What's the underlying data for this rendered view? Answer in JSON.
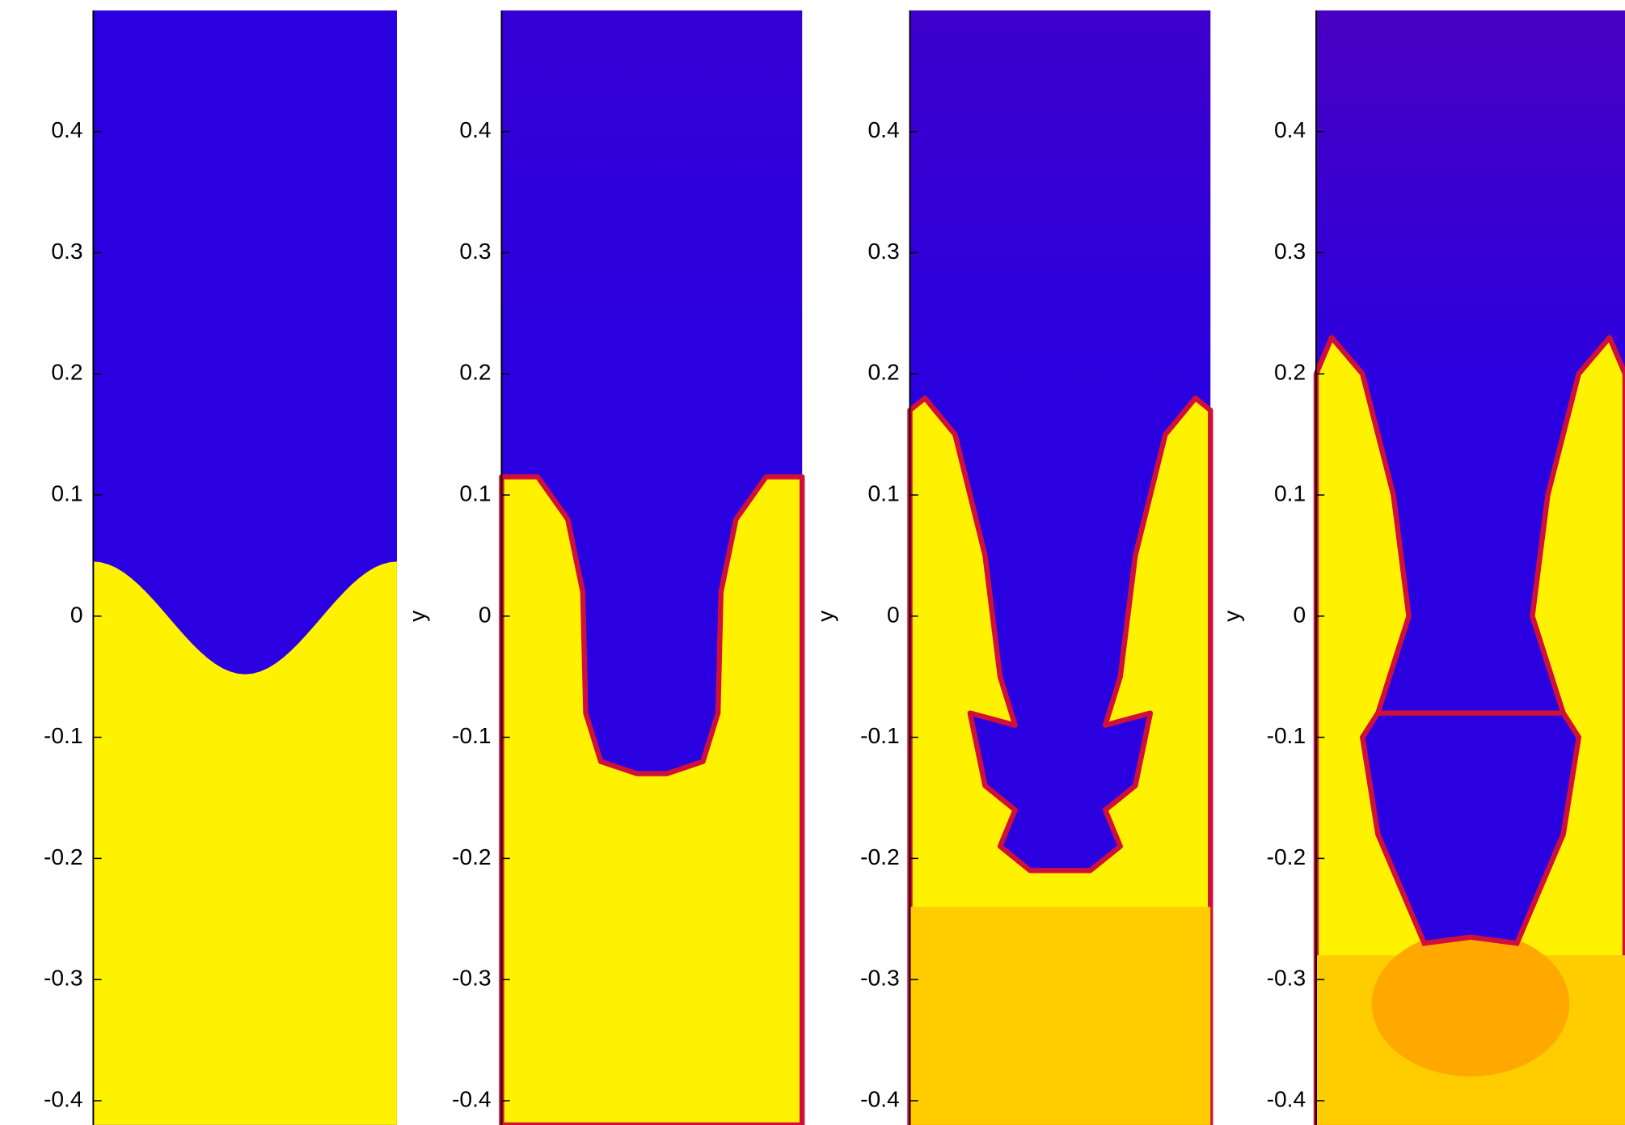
{
  "chart_data": [
    {
      "type": "field",
      "ylim": [
        -0.42,
        0.5
      ],
      "yticks": [
        -0.4,
        -0.3,
        -0.2,
        -0.1,
        0,
        0.1,
        0.2,
        0.3,
        0.4
      ],
      "colors": {
        "light": "#2a00e0",
        "heavy": "#fff200",
        "mixed": "#d0103a"
      }
    },
    {
      "type": "field",
      "ylabel": "y",
      "ylim": [
        -0.42,
        0.5
      ],
      "yticks": [
        -0.4,
        -0.3,
        -0.2,
        -0.1,
        0,
        0.1,
        0.2,
        0.3,
        0.4
      ],
      "colors": {
        "light": "#2a00e0",
        "heavy": "#fff200",
        "mixed": "#d0103a"
      }
    },
    {
      "type": "field",
      "ylabel": "y",
      "ylim": [
        -0.42,
        0.5
      ],
      "yticks": [
        -0.4,
        -0.3,
        -0.2,
        -0.1,
        0,
        0.1,
        0.2,
        0.3,
        0.4
      ],
      "colors": {
        "light": "#2a00e0",
        "heavy": "#fff200",
        "mixed": "#d0103a"
      }
    },
    {
      "type": "field",
      "ylabel": "y",
      "ylim": [
        -0.42,
        0.5
      ],
      "yticks": [
        -0.4,
        -0.3,
        -0.2,
        -0.1,
        0,
        0.1,
        0.2,
        0.3,
        0.4
      ],
      "colors": {
        "light": "#2a00e0",
        "heavy": "#fff200",
        "mixed": "#d0103a"
      }
    }
  ]
}
